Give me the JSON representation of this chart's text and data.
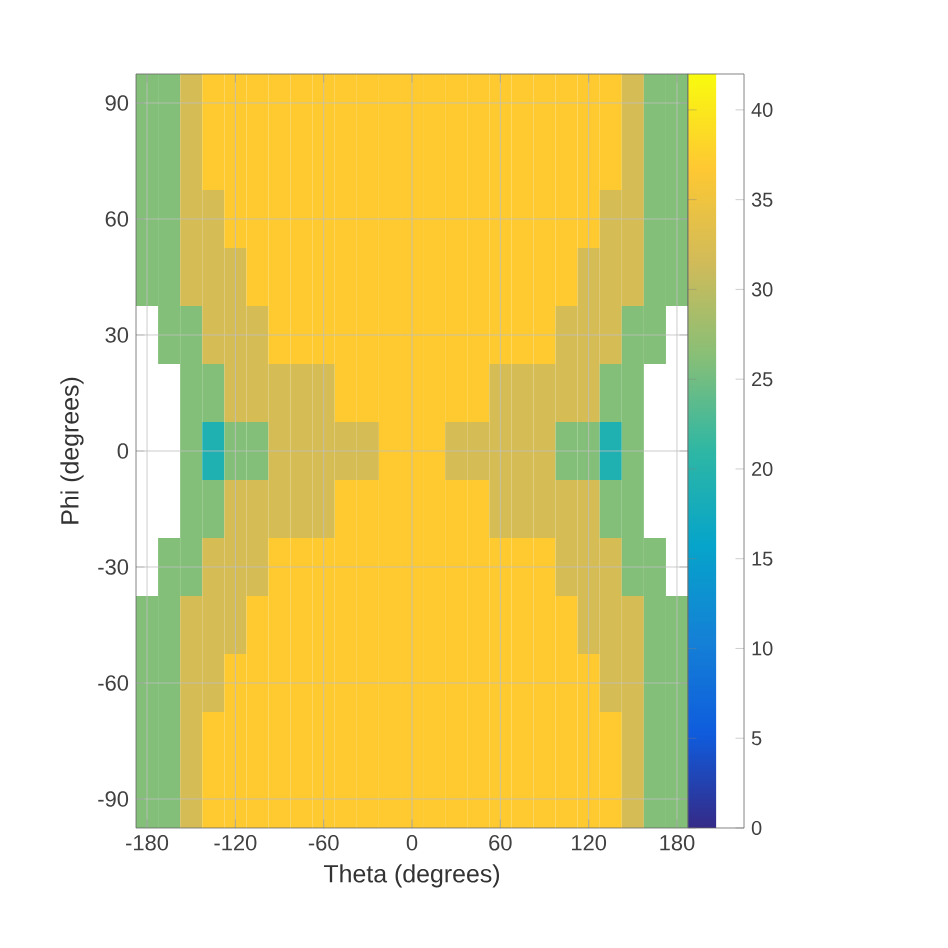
{
  "chart_data": {
    "type": "heatmap",
    "xlabel": "Theta (degrees)",
    "ylabel": "Phi (degrees)",
    "categories": [
      "-180",
      null,
      null,
      null,
      "-120",
      null,
      null,
      null,
      "-60",
      null,
      null,
      null,
      "0",
      null,
      null,
      null,
      "60",
      null,
      null,
      null,
      "120",
      null,
      null,
      null,
      "180"
    ],
    "y_categories": [
      "90",
      null,
      "60",
      null,
      "30",
      null,
      "0",
      null,
      "-30",
      null,
      "-60",
      null,
      "-90"
    ],
    "clim": [
      0,
      42
    ],
    "cticks": [
      0,
      5,
      10,
      15,
      20,
      25,
      30,
      35,
      40
    ],
    "grid": true,
    "cells": [
      [
        26,
        26,
        32,
        37,
        37,
        37,
        37,
        37,
        37,
        37,
        37,
        37,
        37,
        37,
        37,
        37,
        37,
        37,
        37,
        37,
        37,
        37,
        32,
        26,
        26
      ],
      [
        26,
        26,
        32,
        37,
        37,
        37,
        37,
        37,
        37,
        37,
        37,
        37,
        37,
        37,
        37,
        37,
        37,
        37,
        37,
        37,
        37,
        37,
        32,
        26,
        26
      ],
      [
        26,
        26,
        32,
        32,
        37,
        37,
        37,
        37,
        37,
        37,
        37,
        37,
        37,
        37,
        37,
        37,
        37,
        37,
        37,
        37,
        37,
        32,
        32,
        26,
        26
      ],
      [
        26,
        26,
        32,
        32,
        32,
        37,
        37,
        37,
        37,
        37,
        37,
        37,
        37,
        37,
        37,
        37,
        37,
        37,
        37,
        37,
        32,
        32,
        32,
        26,
        26
      ],
      [
        null,
        26,
        26,
        32,
        32,
        32,
        37,
        37,
        37,
        37,
        37,
        37,
        37,
        37,
        37,
        37,
        37,
        37,
        37,
        32,
        32,
        32,
        26,
        26,
        null
      ],
      [
        null,
        null,
        26,
        26,
        32,
        32,
        32,
        32,
        32,
        37,
        37,
        37,
        37,
        37,
        37,
        37,
        32,
        32,
        32,
        32,
        32,
        26,
        26,
        null,
        null
      ],
      [
        null,
        null,
        26,
        19,
        26,
        26,
        32,
        32,
        32,
        32,
        32,
        37,
        37,
        37,
        32,
        32,
        32,
        32,
        32,
        26,
        26,
        19,
        26,
        null,
        null
      ],
      [
        null,
        null,
        26,
        26,
        32,
        32,
        32,
        32,
        32,
        37,
        37,
        37,
        37,
        37,
        37,
        37,
        32,
        32,
        32,
        32,
        32,
        26,
        26,
        null,
        null
      ],
      [
        null,
        26,
        26,
        32,
        32,
        32,
        37,
        37,
        37,
        37,
        37,
        37,
        37,
        37,
        37,
        37,
        37,
        37,
        37,
        32,
        32,
        32,
        26,
        26,
        null
      ],
      [
        26,
        26,
        32,
        32,
        32,
        37,
        37,
        37,
        37,
        37,
        37,
        37,
        37,
        37,
        37,
        37,
        37,
        37,
        37,
        37,
        32,
        32,
        32,
        26,
        26
      ],
      [
        26,
        26,
        32,
        32,
        37,
        37,
        37,
        37,
        37,
        37,
        37,
        37,
        37,
        37,
        37,
        37,
        37,
        37,
        37,
        37,
        37,
        32,
        32,
        26,
        26
      ],
      [
        26,
        26,
        32,
        37,
        37,
        37,
        37,
        37,
        37,
        37,
        37,
        37,
        37,
        37,
        37,
        37,
        37,
        37,
        37,
        37,
        37,
        37,
        32,
        26,
        26
      ],
      [
        26,
        26,
        32,
        37,
        37,
        37,
        37,
        37,
        37,
        37,
        37,
        37,
        37,
        37,
        37,
        37,
        37,
        37,
        37,
        37,
        37,
        37,
        32,
        26,
        26
      ]
    ]
  }
}
